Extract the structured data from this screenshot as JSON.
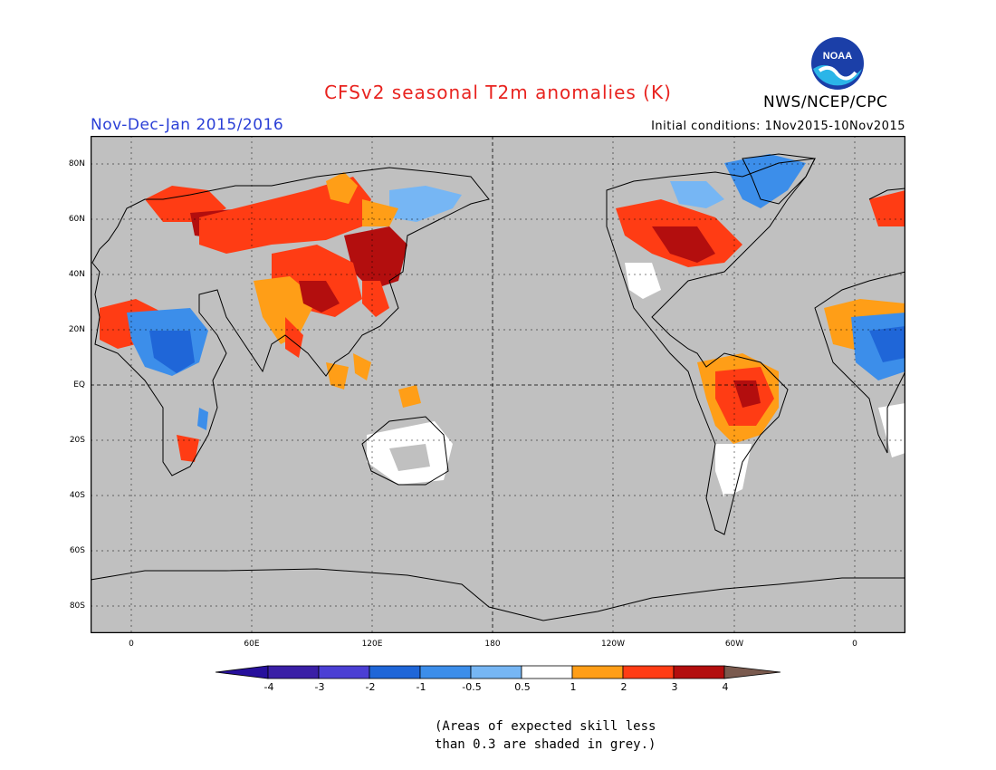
{
  "header": {
    "title": "CFSv2 seasonal T2m anomalies (K)",
    "agency": "NWS/NCEP/CPC",
    "logo_text": "NOAA",
    "season": "Nov-Dec-Jan 2015/2016",
    "initial_conditions": "Initial conditions: 1Nov2015-10Nov2015"
  },
  "map": {
    "lat_labels": [
      "80N",
      "60N",
      "40N",
      "20N",
      "EQ",
      "20S",
      "40S",
      "60S",
      "80S"
    ],
    "lon_labels": [
      "0",
      "60E",
      "120E",
      "180",
      "120W",
      "60W",
      "0"
    ],
    "grey_shade_meaning": "skill < 0.3"
  },
  "colorbar": {
    "labels": [
      "-4",
      "-3",
      "-2",
      "-1",
      "-0.5",
      "0.5",
      "1",
      "2",
      "3",
      "4"
    ],
    "colors": [
      "#3a1fa6",
      "#4b3fd4",
      "#1f66d8",
      "#3c8eea",
      "#76b6f4",
      "#ffffff",
      "#ff9e17",
      "#ff3c14",
      "#b30e0e",
      "#c9a39b"
    ],
    "below_color": "#27109c",
    "above_color": "#7a5a4e"
  },
  "footnote": {
    "line1": "(Areas of expected skill less",
    "line2": "than 0.3 are shaded in grey.)"
  }
}
